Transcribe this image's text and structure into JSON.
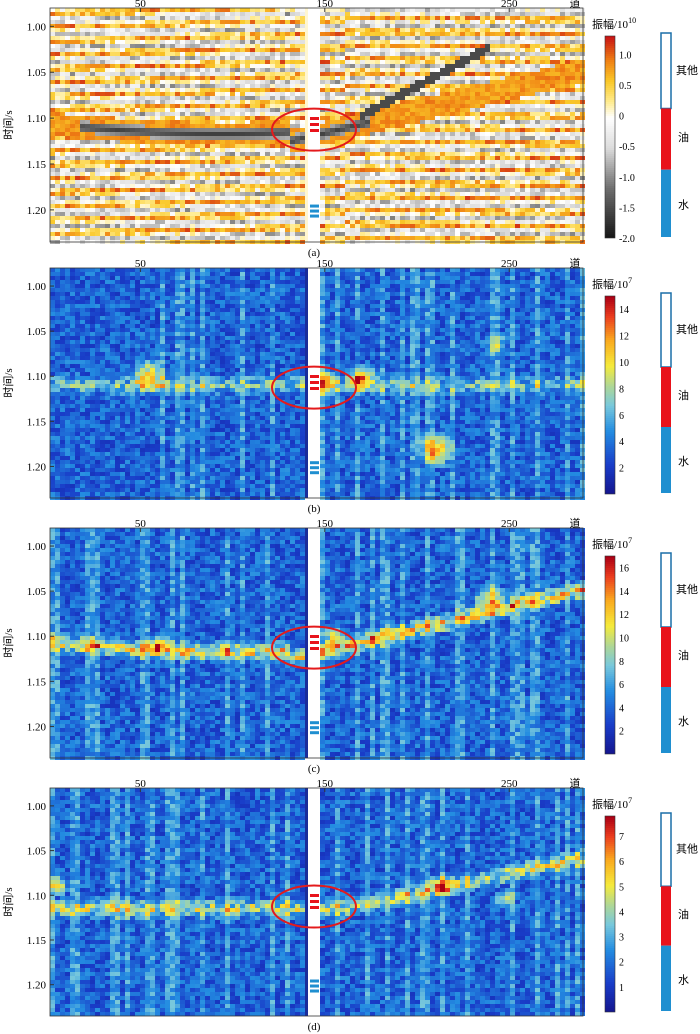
{
  "figure": {
    "y_axis_label": "时间/s",
    "x_axis_label": "道",
    "legend_labels": {
      "other": "其他",
      "oil": "油",
      "water": "水"
    },
    "colors": {
      "oil": "#e8131b",
      "water": "#1f8fd0",
      "frame": "#1a6fa8",
      "marker": "#e41a1c"
    }
  },
  "chart_data": [
    {
      "type": "heatmap",
      "caption": "(a)",
      "colorbar_title": "振幅/10",
      "colorbar_exponent": "10",
      "colormap": "gray-white-yellow-red",
      "colorbar_ticks": [
        "1.0",
        "0.5",
        "0",
        "-0.5",
        "-1.0",
        "-1.5",
        "-2.0"
      ],
      "colorbar_range": [
        -2.0,
        1.3
      ],
      "x_ticks": [
        "50",
        "150",
        "250"
      ],
      "y_ticks": [
        "1.00",
        "1.05",
        "1.10",
        "1.15",
        "1.20"
      ],
      "x_range": [
        1,
        290
      ],
      "y_range": [
        0.98,
        1.235
      ]
    },
    {
      "type": "heatmap",
      "caption": "(b)",
      "colorbar_title": "振幅/10",
      "colorbar_exponent": "7",
      "colormap": "jet",
      "colorbar_ticks": [
        "14",
        "12",
        "10",
        "8",
        "6",
        "4",
        "2"
      ],
      "colorbar_range": [
        0,
        15
      ],
      "x_ticks": [
        "50",
        "150",
        "250"
      ],
      "y_ticks": [
        "1.00",
        "1.05",
        "1.10",
        "1.15",
        "1.20"
      ],
      "x_range": [
        1,
        290
      ],
      "y_range": [
        0.98,
        1.235
      ]
    },
    {
      "type": "heatmap",
      "caption": "(c)",
      "colorbar_title": "振幅/10",
      "colorbar_exponent": "7",
      "colormap": "jet",
      "colorbar_ticks": [
        "16",
        "14",
        "12",
        "10",
        "8",
        "6",
        "4",
        "2"
      ],
      "colorbar_range": [
        0,
        17
      ],
      "x_ticks": [
        "50",
        "150",
        "250"
      ],
      "y_ticks": [
        "1.00",
        "1.05",
        "1.10",
        "1.15",
        "1.20"
      ],
      "x_range": [
        1,
        290
      ],
      "y_range": [
        0.98,
        1.235
      ]
    },
    {
      "type": "heatmap",
      "caption": "(d)",
      "colorbar_title": "振幅/10",
      "colorbar_exponent": "7",
      "colormap": "jet",
      "colorbar_ticks": [
        "7",
        "6",
        "5",
        "4",
        "3",
        "2",
        "1"
      ],
      "colorbar_range": [
        0,
        7.8
      ],
      "x_ticks": [
        "50",
        "150",
        "250"
      ],
      "y_ticks": [
        "1.00",
        "1.05",
        "1.10",
        "1.15",
        "1.20"
      ],
      "x_range": [
        1,
        290
      ],
      "y_range": [
        0.98,
        1.235
      ]
    }
  ]
}
